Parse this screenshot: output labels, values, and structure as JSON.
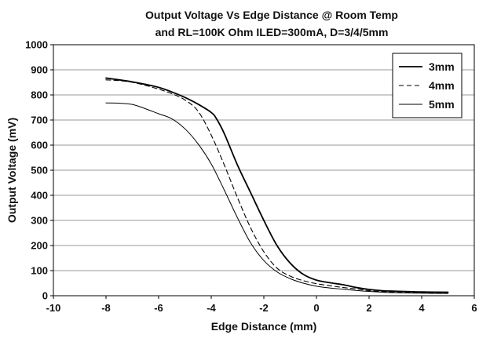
{
  "chart_data": {
    "type": "line",
    "title": "Output Voltage Vs Edge Distance @ Room Temp",
    "subtitle": "and RL=100K Ohm ILED=300mA, D=3/4/5mm",
    "xlabel": "Edge Distance (mm)",
    "ylabel": "Output Voltage (mV)",
    "xlim": [
      -10,
      6
    ],
    "ylim": [
      0,
      1000
    ],
    "xticks": [
      "-10",
      "-8",
      "-6",
      "-4",
      "-2",
      "0",
      "2",
      "4",
      "6"
    ],
    "yticks": [
      "0",
      "100",
      "200",
      "300",
      "400",
      "500",
      "600",
      "700",
      "800",
      "900",
      "1000"
    ],
    "grid": "horizontal",
    "legend_position": "top-right",
    "series": [
      {
        "name": "3mm",
        "style": "solid-thick",
        "color": "#000000",
        "x": [
          -8,
          -7.5,
          -7,
          -6.5,
          -6,
          -5.5,
          -5,
          -4.5,
          -4,
          -3.8,
          -3.5,
          -3,
          -2.5,
          -2,
          -1.5,
          -1,
          -0.5,
          0,
          0.5,
          1,
          1.5,
          2,
          2.5,
          3,
          4,
          5
        ],
        "y": [
          867,
          860,
          852,
          842,
          830,
          812,
          790,
          763,
          730,
          705,
          645,
          520,
          410,
          300,
          200,
          130,
          85,
          62,
          52,
          44,
          33,
          25,
          20,
          18,
          15,
          14
        ]
      },
      {
        "name": "4mm",
        "style": "dashed",
        "color": "#000000",
        "x": [
          -8,
          -7.5,
          -7,
          -6.5,
          -6,
          -5.5,
          -5,
          -4.5,
          -4,
          -3.5,
          -3,
          -2.5,
          -2,
          -1.5,
          -1,
          -0.5,
          0,
          0.5,
          1,
          1.5,
          2,
          2.5,
          3,
          4,
          5
        ],
        "y": [
          860,
          857,
          850,
          838,
          823,
          805,
          780,
          735,
          640,
          520,
          390,
          270,
          175,
          110,
          78,
          60,
          48,
          40,
          33,
          27,
          20,
          16,
          14,
          12,
          11
        ]
      },
      {
        "name": "5mm",
        "style": "solid-thin",
        "color": "#000000",
        "x": [
          -8,
          -7.5,
          -7,
          -6.5,
          -6,
          -5.5,
          -5,
          -4.5,
          -4,
          -3.5,
          -3,
          -2.5,
          -2,
          -1.5,
          -1,
          -0.5,
          0,
          0.5,
          1,
          1.5,
          2,
          2.5,
          3,
          4,
          5
        ],
        "y": [
          768,
          767,
          762,
          745,
          725,
          705,
          665,
          605,
          525,
          420,
          310,
          210,
          140,
          95,
          68,
          50,
          38,
          31,
          26,
          21,
          17,
          14,
          12,
          10,
          9
        ]
      }
    ]
  }
}
